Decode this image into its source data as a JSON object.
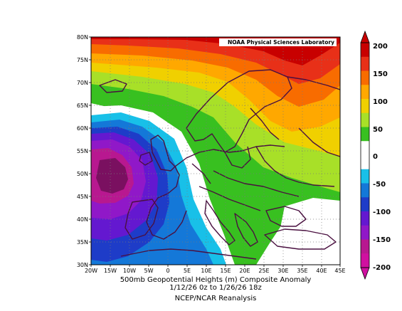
{
  "lab_label": "NOAA Physical Sciences Laboratory",
  "caption": {
    "line1": "500mb Geopotential Heights (m)     Composite Anomaly",
    "line2": "1/12/26 0z  to 1/26/26 18z",
    "line3": "NCEP/NCAR Reanalysis"
  },
  "axes": {
    "lat_labels": [
      "80N",
      "75N",
      "70N",
      "65N",
      "60N",
      "55N",
      "50N",
      "45N",
      "40N",
      "35N",
      "30N"
    ],
    "lon_labels": [
      "20W",
      "15W",
      "10W",
      "5W",
      "0",
      "5E",
      "10E",
      "15E",
      "20E",
      "25E",
      "30E",
      "35E",
      "40E",
      "45E"
    ]
  },
  "colorbar": {
    "tick_labels": [
      "200",
      "150",
      "100",
      "50",
      "0",
      "-50",
      "-100",
      "-150",
      "-200"
    ],
    "colors_top_to_bottom": [
      "#c80000",
      "#e83018",
      "#f86c00",
      "#ffa800",
      "#f0d000",
      "#a8e028",
      "#38c020",
      "#ffffff",
      "#ffffff",
      "#18c0e8",
      "#1478d8",
      "#1e3cc8",
      "#6418d0",
      "#9018c8",
      "#b81890",
      "#d010a0"
    ]
  },
  "map": {
    "lon_range": [
      -20,
      45
    ],
    "lat_range": [
      30,
      80
    ],
    "min_anomaly_center": "48N 10W",
    "max_anomaly_region": "northern Scandinavia / Barents"
  }
}
